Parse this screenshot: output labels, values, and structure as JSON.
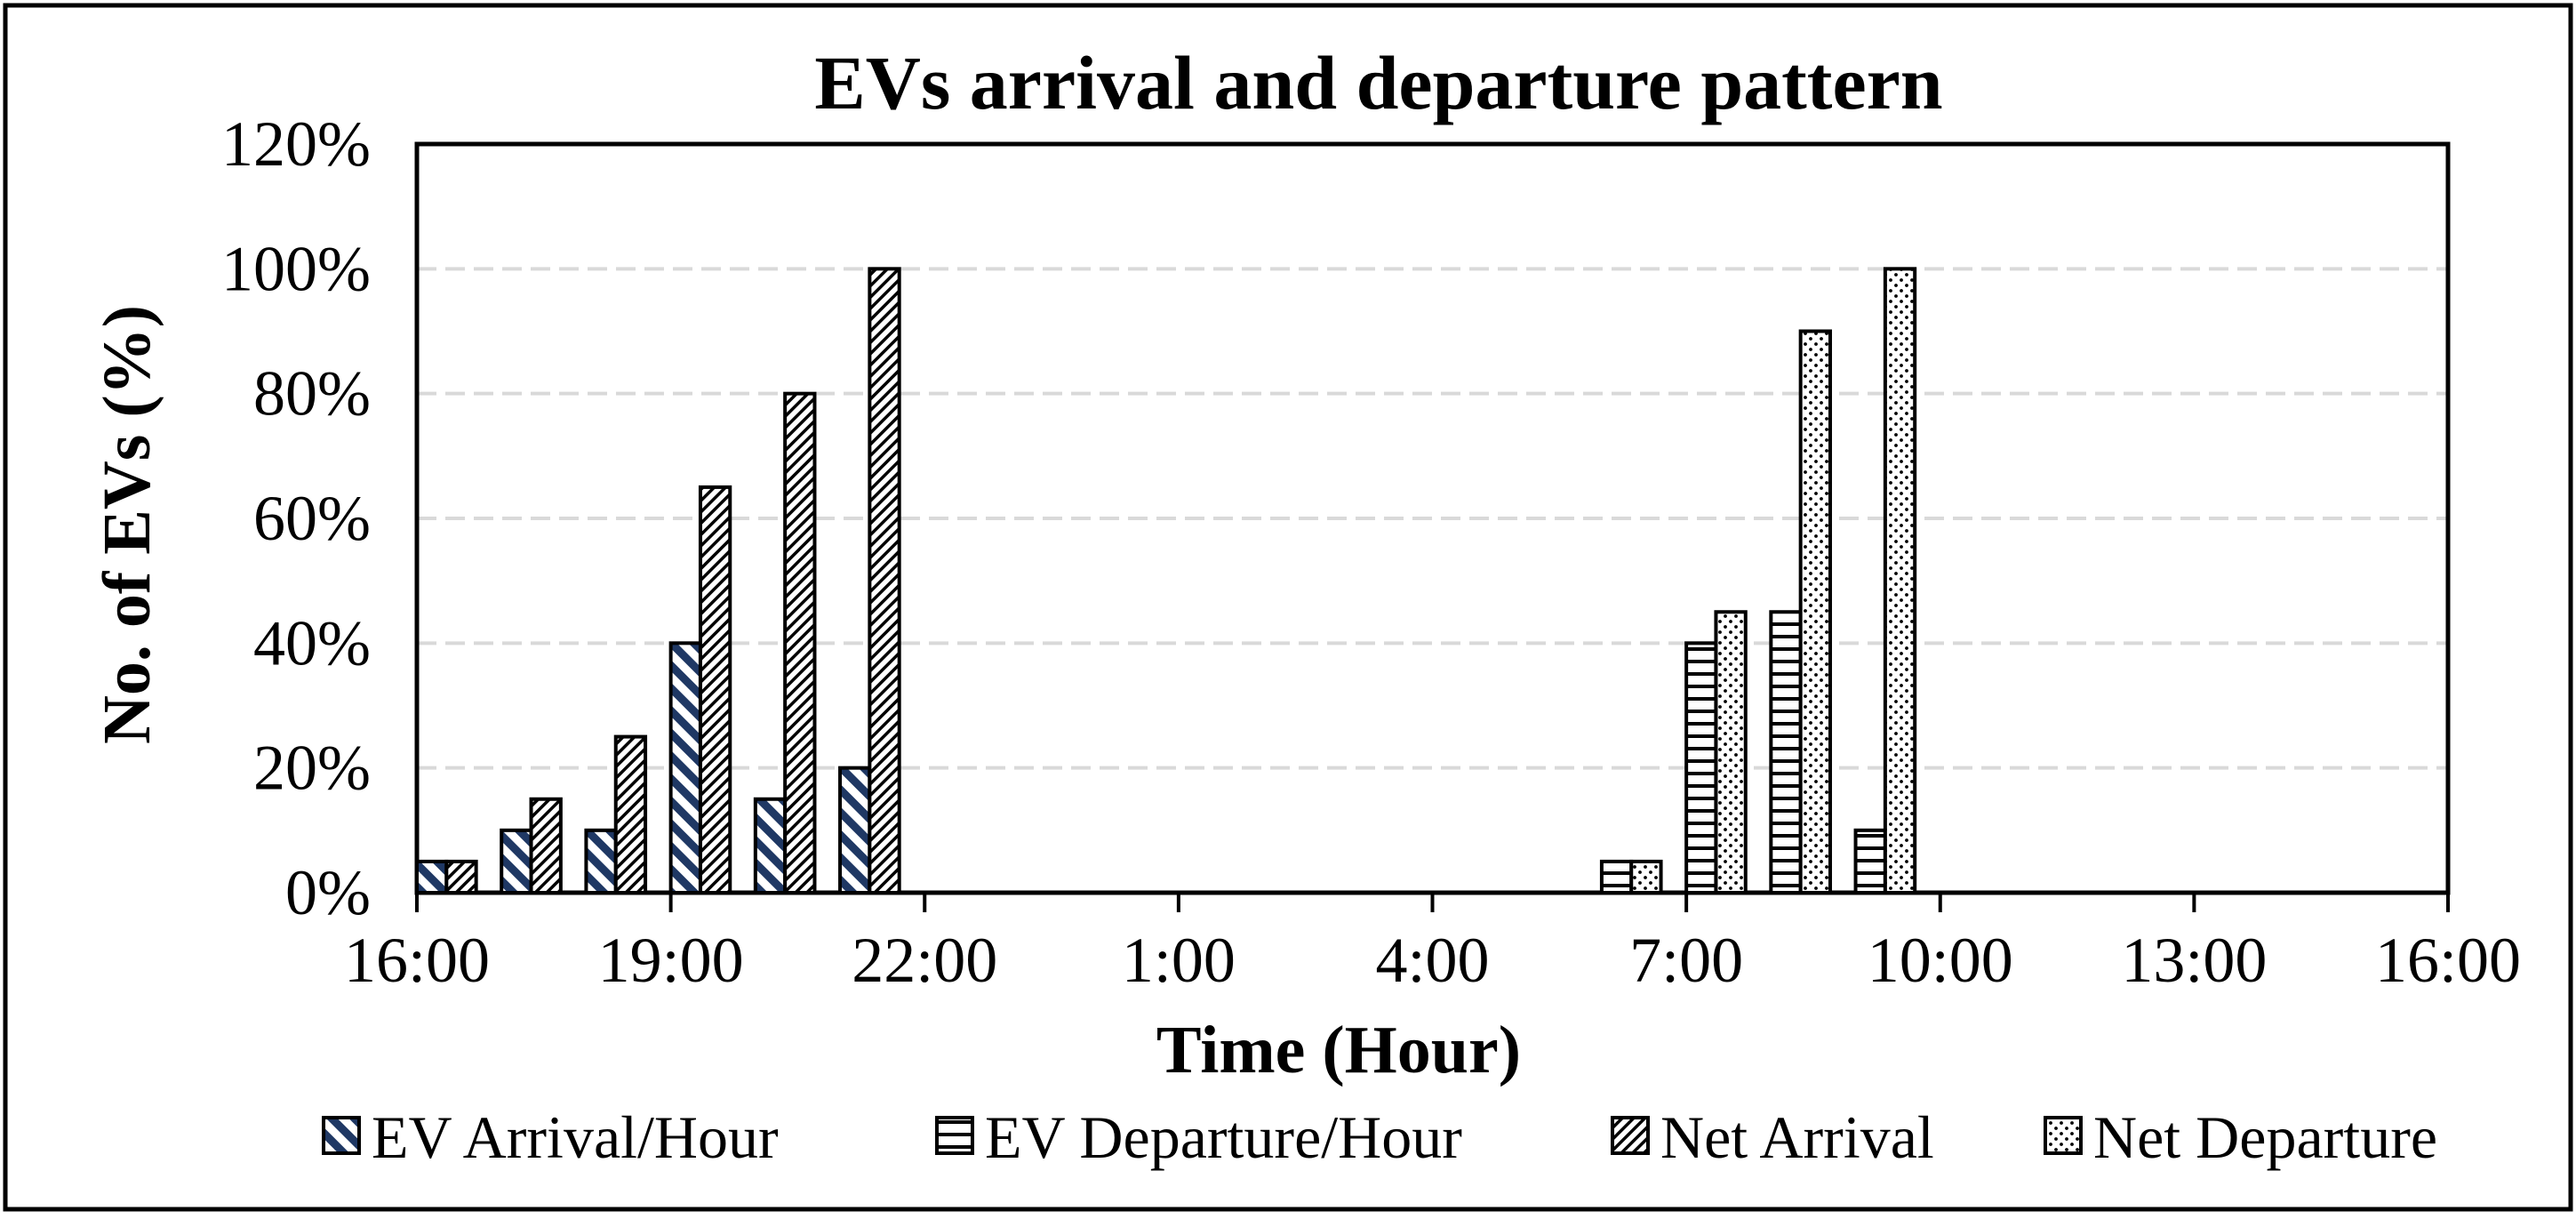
{
  "chart_data": {
    "type": "bar",
    "title": "EVs arrival and departure pattern",
    "xlabel": "Time (Hour)",
    "ylabel": "No. of EVs (%)",
    "ylim": [
      0,
      120
    ],
    "y_ticks": [
      "0%",
      "20%",
      "40%",
      "60%",
      "80%",
      "100%",
      "120%"
    ],
    "x_range": [
      0,
      24
    ],
    "x_ticks": [
      "16:00",
      "19:00",
      "22:00",
      "1:00",
      "4:00",
      "7:00",
      "10:00",
      "13:00",
      "16:00"
    ],
    "grid": true,
    "legend_position": "bottom",
    "colors": {
      "navy": "#1f3864",
      "black": "#000000",
      "grid": "#d9d9d9",
      "frame": "#000000"
    },
    "series": [
      {
        "name": "EV Arrival/Hour",
        "pattern": "navy-diagonal",
        "points": [
          {
            "hours_after_16": 0,
            "value": 5
          },
          {
            "hours_after_16": 1,
            "value": 10
          },
          {
            "hours_after_16": 2,
            "value": 10
          },
          {
            "hours_after_16": 3,
            "value": 40
          },
          {
            "hours_after_16": 4,
            "value": 15
          },
          {
            "hours_after_16": 5,
            "value": 20
          }
        ]
      },
      {
        "name": "EV Departure/Hour",
        "pattern": "horizontal-lines",
        "points": [
          {
            "hours_after_16": 14,
            "value": 5
          },
          {
            "hours_after_16": 15,
            "value": 40
          },
          {
            "hours_after_16": 16,
            "value": 45
          },
          {
            "hours_after_16": 17,
            "value": 10
          }
        ]
      },
      {
        "name": "Net Arrival",
        "pattern": "fine-diagonal",
        "points": [
          {
            "hours_after_16": 0,
            "value": 5
          },
          {
            "hours_after_16": 1,
            "value": 15
          },
          {
            "hours_after_16": 2,
            "value": 25
          },
          {
            "hours_after_16": 3,
            "value": 65
          },
          {
            "hours_after_16": 4,
            "value": 80
          },
          {
            "hours_after_16": 5,
            "value": 100
          }
        ]
      },
      {
        "name": "Net Departure",
        "pattern": "dots",
        "points": [
          {
            "hours_after_16": 14,
            "value": 5
          },
          {
            "hours_after_16": 15,
            "value": 45
          },
          {
            "hours_after_16": 16,
            "value": 90
          },
          {
            "hours_after_16": 17,
            "value": 100
          }
        ]
      }
    ]
  }
}
